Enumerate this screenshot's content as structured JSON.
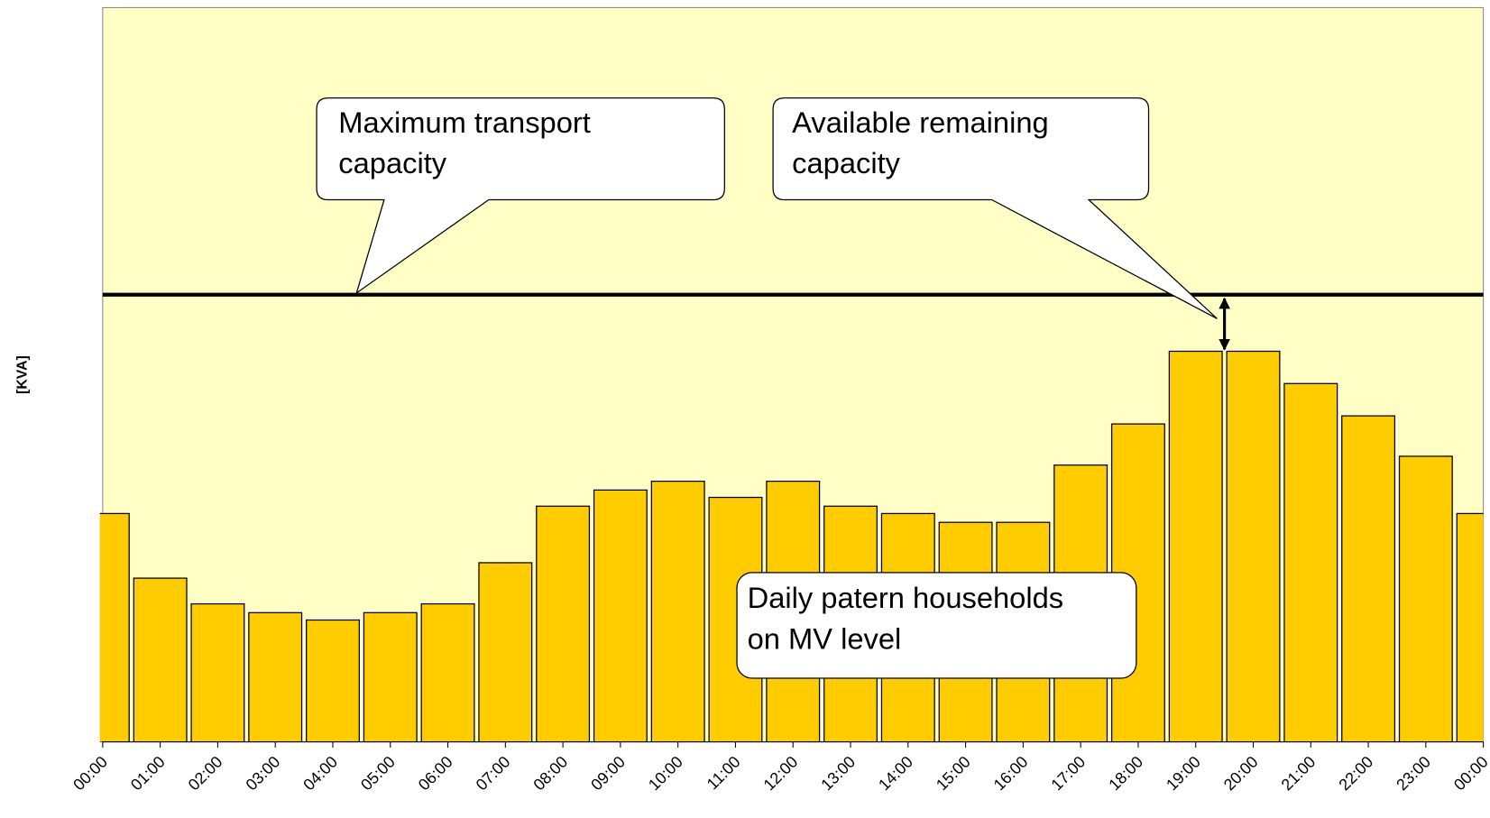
{
  "chart_data": {
    "type": "bar",
    "y_axis_label": "[KVA]",
    "categories": [
      "00:00",
      "01:00",
      "02:00",
      "03:00",
      "04:00",
      "05:00",
      "06:00",
      "07:00",
      "08:00",
      "09:00",
      "10:00",
      "11:00",
      "12:00",
      "13:00",
      "14:00",
      "15:00",
      "16:00",
      "17:00",
      "18:00",
      "19:00",
      "20:00",
      "21:00",
      "22:00",
      "23:00",
      "00:00"
    ],
    "values": [
      31.1,
      22.3,
      18.8,
      17.6,
      16.6,
      17.6,
      18.8,
      24.4,
      32.1,
      34.3,
      35.5,
      33.3,
      35.5,
      32.1,
      31.1,
      29.9,
      29.9,
      37.7,
      43.3,
      53.2,
      53.2,
      48.8,
      44.4,
      38.9,
      31.1
    ],
    "color": "#ffcc00",
    "ylim": [
      0,
      100
    ],
    "reference_line": {
      "value": 60.9,
      "color": "#000000"
    },
    "annotations": [
      {
        "lines": [
          "Maximum transport",
          "capacity"
        ]
      },
      {
        "lines": [
          "Available remaining",
          "capacity"
        ]
      },
      {
        "lines": [
          "Daily patern households",
          "on MV level"
        ]
      }
    ]
  }
}
